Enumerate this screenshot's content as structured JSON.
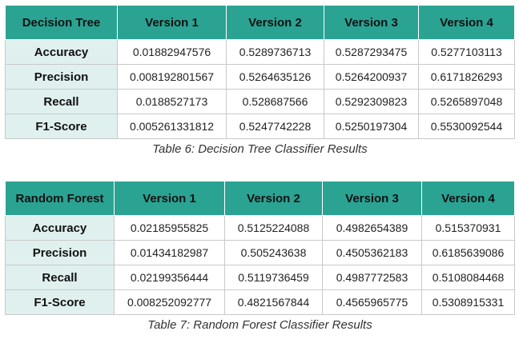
{
  "tables": [
    {
      "corner": "Decision Tree",
      "versions": [
        "Version 1",
        "Version 2",
        "Version 3",
        "Version 4"
      ],
      "rows": [
        {
          "metric": "Accuracy",
          "values": [
            "0.01882947576",
            "0.5289736713",
            "0.5287293475",
            "0.5277103113"
          ]
        },
        {
          "metric": "Precision",
          "values": [
            "0.008192801567",
            "0.5264635126",
            "0.5264200937",
            "0.6171826293"
          ]
        },
        {
          "metric": "Recall",
          "values": [
            "0.0188527173",
            "0.528687566",
            "0.5292309823",
            "0.5265897048"
          ]
        },
        {
          "metric": "F1-Score",
          "values": [
            "0.005261331812",
            "0.5247742228",
            "0.5250197304",
            "0.5530092544"
          ]
        }
      ],
      "caption": "Table 6: Decision Tree Classifier Results"
    },
    {
      "corner": "Random Forest",
      "versions": [
        "Version 1",
        "Version 2",
        "Version 3",
        "Version 4"
      ],
      "rows": [
        {
          "metric": "Accuracy",
          "values": [
            "0.02185955825",
            "0.5125224088",
            "0.4982654389",
            "0.515370931"
          ]
        },
        {
          "metric": "Precision",
          "values": [
            "0.01434182987",
            "0.505243638",
            "0.4505362183",
            "0.6185639086"
          ]
        },
        {
          "metric": "Recall",
          "values": [
            "0.02199356444",
            "0.5119736459",
            "0.4987772583",
            "0.5108084468"
          ]
        },
        {
          "metric": "F1-Score",
          "values": [
            "0.008252092777",
            "0.4821567844",
            "0.4565965775",
            "0.5308915331"
          ]
        }
      ],
      "caption": "Table 7: Random Forest Classifier Results"
    }
  ]
}
